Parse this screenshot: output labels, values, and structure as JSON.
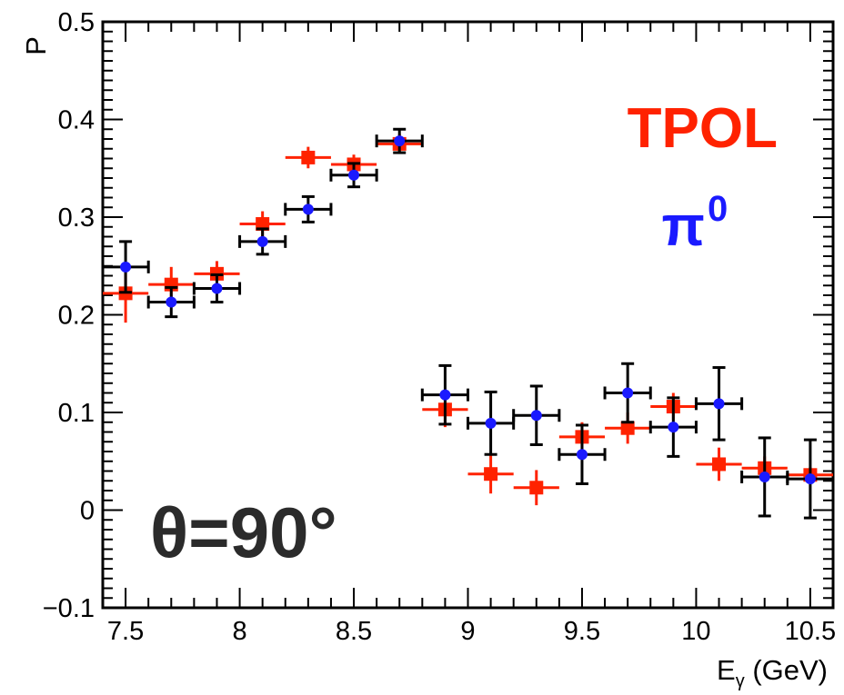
{
  "chart_data": {
    "type": "scatter",
    "ylabel": "P",
    "xlabel_main": "E",
    "xlabel_sub": "γ",
    "xlabel_unit": " (GeV)",
    "xlim": [
      7.4,
      10.6
    ],
    "ylim": [
      -0.1,
      0.5
    ],
    "x_ticks": [
      "7.5",
      "8",
      "8.5",
      "9",
      "9.5",
      "10",
      "10.5"
    ],
    "x_tick_values": [
      7.5,
      8,
      8.5,
      9,
      9.5,
      10,
      10.5
    ],
    "y_ticks": [
      "−0.1",
      "0",
      "0.1",
      "0.2",
      "0.3",
      "0.4",
      "0.5"
    ],
    "y_tick_values": [
      -0.1,
      0,
      0.1,
      0.2,
      0.3,
      0.4,
      0.5
    ],
    "legend": {
      "tpol": "TPOL",
      "pi_base": "π",
      "pi_sup": "0"
    },
    "annotation": "θ=90°",
    "colors": {
      "tpol": "#ff2200",
      "pi": "#1a1aff",
      "error_bar_pi": "#000000",
      "annotation": "#2b2b2b"
    },
    "series": [
      {
        "name": "TPOL",
        "marker": "square",
        "points": [
          {
            "x": 7.5,
            "y": 0.222,
            "xerr": 0.1,
            "yerr": 0.03
          },
          {
            "x": 7.7,
            "y": 0.231,
            "xerr": 0.1,
            "yerr": 0.018
          },
          {
            "x": 7.9,
            "y": 0.242,
            "xerr": 0.1,
            "yerr": 0.013
          },
          {
            "x": 8.1,
            "y": 0.293,
            "xerr": 0.1,
            "yerr": 0.013
          },
          {
            "x": 8.3,
            "y": 0.361,
            "xerr": 0.1,
            "yerr": 0.011
          },
          {
            "x": 8.5,
            "y": 0.354,
            "xerr": 0.1,
            "yerr": 0.01
          },
          {
            "x": 8.7,
            "y": 0.375,
            "xerr": 0.1,
            "yerr": 0.01
          },
          {
            "x": 8.9,
            "y": 0.103,
            "xerr": 0.1,
            "yerr": 0.018
          },
          {
            "x": 9.1,
            "y": 0.037,
            "xerr": 0.1,
            "yerr": 0.02
          },
          {
            "x": 9.3,
            "y": 0.023,
            "xerr": 0.1,
            "yerr": 0.018
          },
          {
            "x": 9.5,
            "y": 0.075,
            "xerr": 0.1,
            "yerr": 0.015
          },
          {
            "x": 9.7,
            "y": 0.084,
            "xerr": 0.1,
            "yerr": 0.016
          },
          {
            "x": 9.9,
            "y": 0.106,
            "xerr": 0.1,
            "yerr": 0.014
          },
          {
            "x": 10.1,
            "y": 0.047,
            "xerr": 0.1,
            "yerr": 0.017
          },
          {
            "x": 10.3,
            "y": 0.043,
            "xerr": 0.1,
            "yerr": 0.012
          },
          {
            "x": 10.5,
            "y": 0.036,
            "xerr": 0.1,
            "yerr": 0.008
          }
        ]
      },
      {
        "name": "π0",
        "marker": "circle",
        "points": [
          {
            "x": 7.5,
            "y": 0.249,
            "xerr": 0.1,
            "yerr": 0.026
          },
          {
            "x": 7.7,
            "y": 0.213,
            "xerr": 0.1,
            "yerr": 0.015
          },
          {
            "x": 7.9,
            "y": 0.227,
            "xerr": 0.1,
            "yerr": 0.014
          },
          {
            "x": 8.1,
            "y": 0.275,
            "xerr": 0.1,
            "yerr": 0.013
          },
          {
            "x": 8.3,
            "y": 0.308,
            "xerr": 0.1,
            "yerr": 0.013
          },
          {
            "x": 8.5,
            "y": 0.343,
            "xerr": 0.1,
            "yerr": 0.012
          },
          {
            "x": 8.7,
            "y": 0.378,
            "xerr": 0.1,
            "yerr": 0.012
          },
          {
            "x": 8.9,
            "y": 0.118,
            "xerr": 0.1,
            "yerr": 0.03
          },
          {
            "x": 9.1,
            "y": 0.089,
            "xerr": 0.1,
            "yerr": 0.032
          },
          {
            "x": 9.3,
            "y": 0.097,
            "xerr": 0.1,
            "yerr": 0.03
          },
          {
            "x": 9.5,
            "y": 0.057,
            "xerr": 0.1,
            "yerr": 0.03
          },
          {
            "x": 9.7,
            "y": 0.12,
            "xerr": 0.1,
            "yerr": 0.03
          },
          {
            "x": 9.9,
            "y": 0.085,
            "xerr": 0.1,
            "yerr": 0.03
          },
          {
            "x": 10.1,
            "y": 0.109,
            "xerr": 0.1,
            "yerr": 0.037
          },
          {
            "x": 10.3,
            "y": 0.034,
            "xerr": 0.1,
            "yerr": 0.04
          },
          {
            "x": 10.5,
            "y": 0.032,
            "xerr": 0.1,
            "yerr": 0.04
          }
        ]
      }
    ]
  }
}
